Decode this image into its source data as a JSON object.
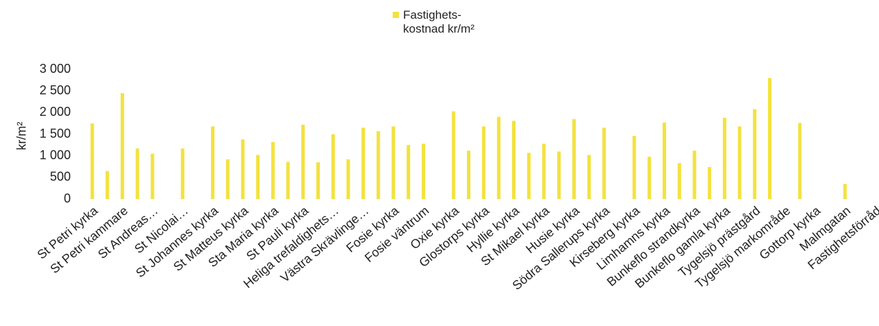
{
  "chart_data": {
    "type": "bar",
    "y_label": "kr/m²",
    "categories": [
      "St Petri kyrka",
      null,
      "St Petri kammare",
      null,
      "St Andreas…",
      null,
      "St Nicolai…",
      null,
      "St Johannes kyrka",
      null,
      "St Matteus kyrka",
      null,
      "Sta Maria kyrka",
      null,
      "St Pauli kyrka",
      null,
      "Heliga trefaldighets…",
      null,
      "Västra Skrävlinge…",
      null,
      "Fosie kyrka",
      null,
      "Fosie väntrum",
      null,
      "Oxie kyrka",
      null,
      "Glostorps kyrka",
      null,
      "Hyllie kyrka",
      null,
      "St Mikael kyrka",
      null,
      "Husie kyrka",
      null,
      "Södra Sallerups kyrka",
      null,
      "Kirseberg kyrka",
      null,
      "Limhamns kyrka",
      null,
      "Bunkeflo strandkyrka",
      null,
      "Bunkeflo gamla kyrka",
      null,
      "Tygelsjö prästgård",
      null,
      "Tygelsjö markområde",
      null,
      "Gottorp kyrka",
      null,
      "Malmgatan",
      null,
      "Fastighetsförråd"
    ],
    "series": [
      {
        "name": "Fastighets- kostnad kr/m²",
        "color": "#f3e23e",
        "values": [
          1750,
          650,
          2450,
          1170,
          1050,
          null,
          1170,
          null,
          1680,
          920,
          1380,
          1020,
          1320,
          860,
          1720,
          850,
          1500,
          920,
          1650,
          1570,
          1680,
          1250,
          1280,
          null,
          2030,
          1120,
          1680,
          1900,
          1810,
          1070,
          1280,
          1100,
          1850,
          1020,
          1650,
          null,
          1460,
          980,
          1770,
          830,
          1120,
          740,
          1880,
          1680,
          2080,
          2800,
          null,
          1760,
          null,
          null,
          350,
          null,
          null
        ]
      }
    ],
    "ylim": [
      0,
      3000
    ],
    "yticks": [
      {
        "value": 0,
        "label": "0"
      },
      {
        "value": 500,
        "label": "500"
      },
      {
        "value": 1000,
        "label": "1 000"
      },
      {
        "value": 1500,
        "label": "1 500"
      },
      {
        "value": 2000,
        "label": "2 000"
      },
      {
        "value": 2500,
        "label": "2 500"
      },
      {
        "value": 3000,
        "label": "3 000"
      }
    ],
    "grid": false
  }
}
